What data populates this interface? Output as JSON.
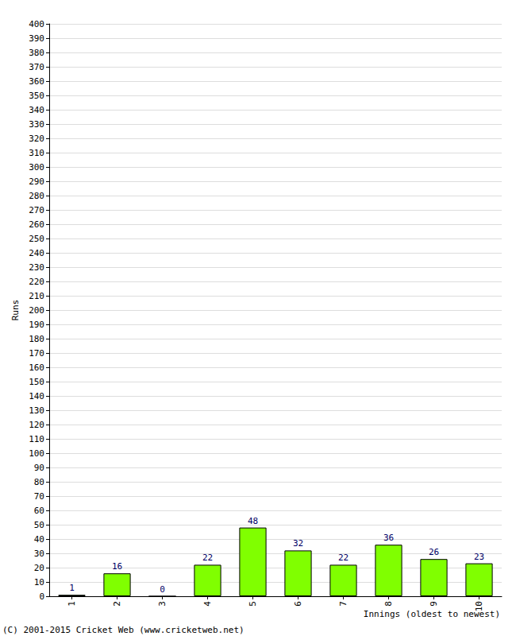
{
  "chart_data": {
    "type": "bar",
    "x_label": "Innings (oldest to newest)",
    "y_label": "Runs",
    "annotations": [
      "(C) 2001-2015 Cricket Web (www.cricketweb.net)"
    ],
    "categories": [
      "1",
      "2",
      "3",
      "4",
      "5",
      "6",
      "7",
      "8",
      "9",
      "10"
    ],
    "values": [
      1,
      16,
      0,
      22,
      48,
      32,
      22,
      36,
      26,
      23
    ],
    "color": "#80ff00",
    "ylim": [
      0,
      400
    ],
    "yticks": [
      0,
      10,
      20,
      30,
      40,
      50,
      60,
      70,
      80,
      90,
      100,
      110,
      120,
      130,
      140,
      150,
      160,
      170,
      180,
      190,
      200,
      210,
      220,
      230,
      240,
      250,
      260,
      270,
      280,
      290,
      300,
      310,
      320,
      330,
      340,
      350,
      360,
      370,
      380,
      390,
      400
    ],
    "grid": true,
    "data_labels": true
  }
}
